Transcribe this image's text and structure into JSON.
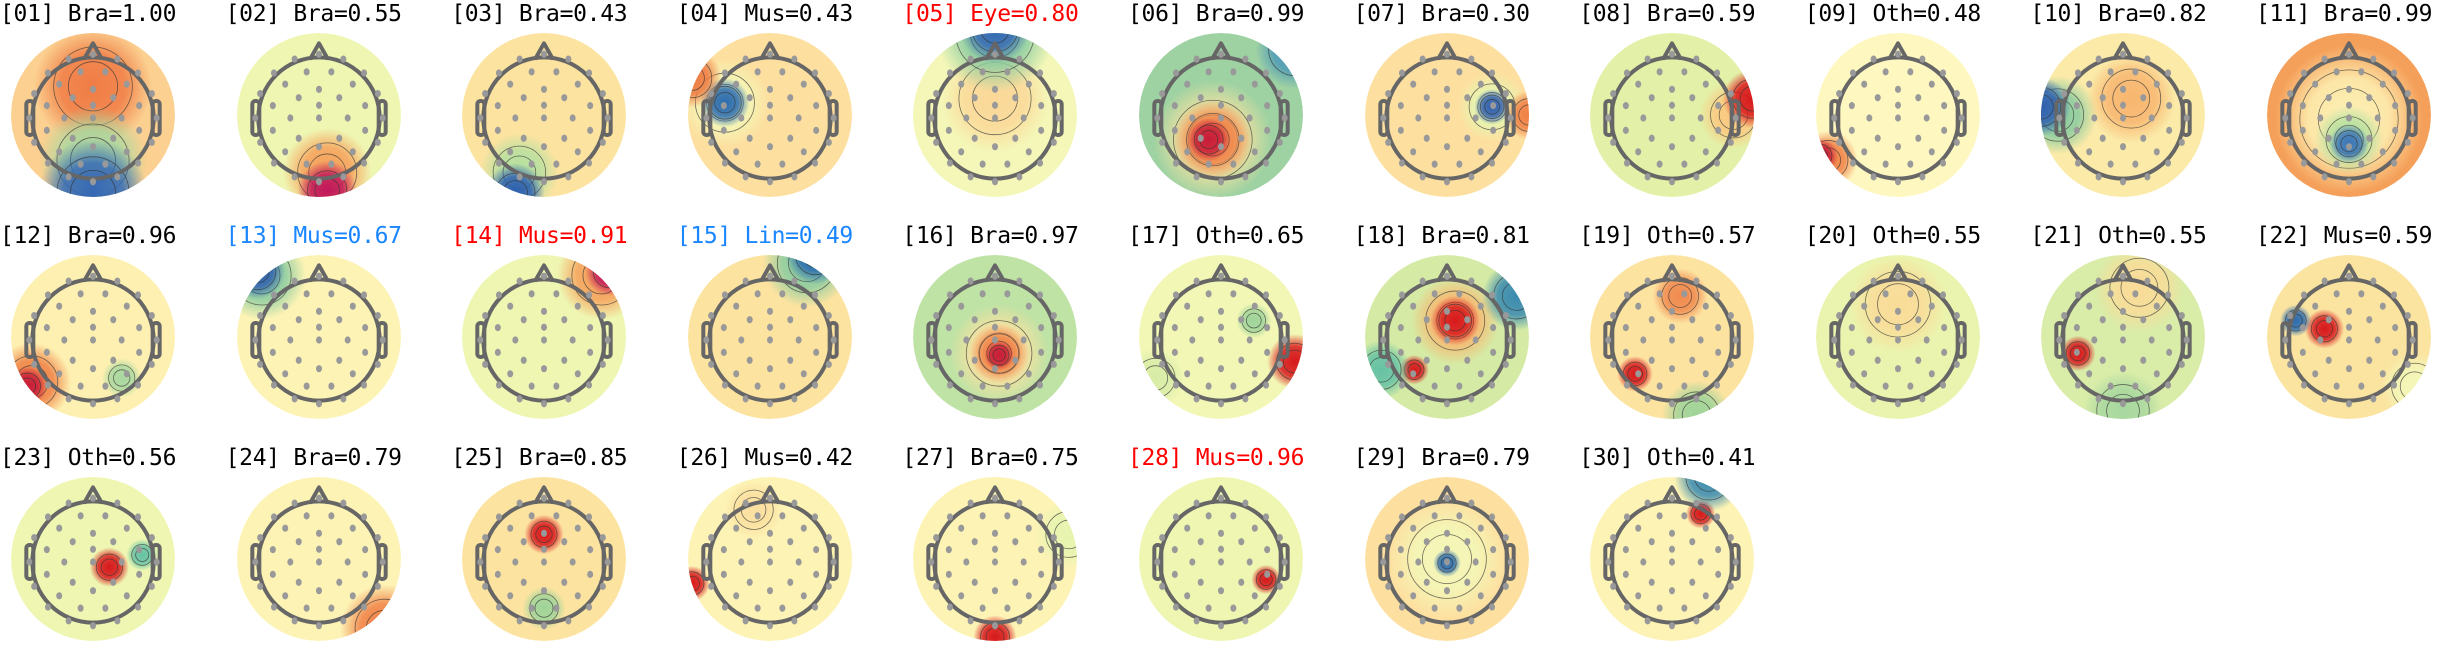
{
  "chart_data": {
    "type": "heatmap",
    "subtype": "scalp-topomap-grid",
    "colormap": "spectral (blue = negative, yellow = neutral, red = positive)",
    "colors": {
      "default_label": "#000000",
      "flagged_label": "#ff0000",
      "warning_label": "#1a86ff"
    },
    "panels": [
      {
        "title": "[01] Bra=1.00",
        "label_color": "#000000",
        "base": "#fbd090",
        "blobs": [
          [
            0,
            -0.35,
            0.6,
            "#f07c45"
          ],
          [
            0,
            0.55,
            0.55,
            "#a8d8a0"
          ],
          [
            0,
            0.95,
            0.55,
            "#3568b5"
          ]
        ]
      },
      {
        "title": "[02] Bra=0.55",
        "label_color": "#000000",
        "base": "#eef6b2",
        "blobs": [
          [
            0.1,
            0.7,
            0.45,
            "#f6a05a"
          ],
          [
            0.1,
            0.92,
            0.3,
            "#c2185b"
          ]
        ]
      },
      {
        "title": "[03] Bra=0.43",
        "label_color": "#000000",
        "base": "#fde3a0",
        "blobs": [
          [
            -0.3,
            0.7,
            0.4,
            "#b5e0a0"
          ],
          [
            -0.35,
            0.95,
            0.3,
            "#2c5fb0"
          ]
        ]
      },
      {
        "title": "[04] Mus=0.43",
        "label_color": "#000000",
        "base": "#fde0a0",
        "blobs": [
          [
            -0.55,
            -0.15,
            0.45,
            "#f3f7b8"
          ],
          [
            -0.55,
            -0.15,
            0.25,
            "#2b6cb0"
          ],
          [
            -0.95,
            -0.45,
            0.3,
            "#ee7b42"
          ]
        ]
      },
      {
        "title": "[05] Eye=0.80",
        "label_color": "#ff0000",
        "base": "#f4f7b8",
        "blobs": [
          [
            0,
            -0.2,
            0.55,
            "#fbd898"
          ],
          [
            0,
            -1,
            0.6,
            "#8acca0"
          ],
          [
            0,
            -1.05,
            0.35,
            "#3568b5"
          ]
        ]
      },
      {
        "title": "[06] Bra=0.99",
        "label_color": "#000000",
        "base": "#9fd2a2",
        "blobs": [
          [
            -0.1,
            0.3,
            0.6,
            "#f7e2a0"
          ],
          [
            -0.1,
            0.3,
            0.4,
            "#f08045"
          ],
          [
            -0.15,
            0.3,
            0.22,
            "#c81d3a"
          ],
          [
            0.9,
            -0.8,
            0.4,
            "#4f9ab8"
          ]
        ]
      },
      {
        "title": "[07] Bra=0.30",
        "label_color": "#000000",
        "base": "#fde0a0",
        "blobs": [
          [
            0.55,
            -0.1,
            0.35,
            "#e6f4b0"
          ],
          [
            0.55,
            -0.1,
            0.18,
            "#3060b0"
          ],
          [
            1,
            0,
            0.25,
            "#f08045"
          ]
        ]
      },
      {
        "title": "[08] Bra=0.59",
        "label_color": "#000000",
        "base": "#e3f1a8",
        "blobs": [
          [
            0.75,
            0,
            0.35,
            "#fbc880"
          ],
          [
            0.98,
            -0.2,
            0.3,
            "#d7191c"
          ]
        ]
      },
      {
        "title": "[09] Oth=0.48",
        "label_color": "#000000",
        "base": "#fef8c0",
        "blobs": [
          [
            -0.85,
            0.55,
            0.3,
            "#f08045"
          ],
          [
            -0.95,
            0.5,
            0.18,
            "#c81d3a"
          ]
        ]
      },
      {
        "title": "[10] Bra=0.82",
        "label_color": "#000000",
        "base": "#fbeaa8",
        "blobs": [
          [
            0.1,
            -0.2,
            0.45,
            "#f8b670"
          ],
          [
            -0.8,
            0,
            0.4,
            "#8acca0"
          ],
          [
            -1,
            -0.1,
            0.3,
            "#3060b0"
          ]
        ]
      },
      {
        "title": "[11] Bra=0.99",
        "label_color": "#000000",
        "base": "#f5a05a",
        "blobs": [
          [
            0,
            0.05,
            0.75,
            "#fdf2b5"
          ],
          [
            0,
            0.3,
            0.35,
            "#b5e0a0"
          ],
          [
            0,
            0.35,
            0.2,
            "#3b75b8"
          ]
        ]
      },
      {
        "title": "[12] Bra=0.96",
        "label_color": "#000000",
        "base": "#fdf0b0",
        "blobs": [
          [
            -0.75,
            0.55,
            0.4,
            "#f08045"
          ],
          [
            -0.8,
            0.6,
            0.2,
            "#c81d3a"
          ],
          [
            0.35,
            0.5,
            0.2,
            "#a8d8a0"
          ]
        ]
      },
      {
        "title": "[13] Mus=0.67",
        "label_color": "#1a86ff",
        "base": "#fdf3b5",
        "blobs": [
          [
            -0.7,
            -0.75,
            0.45,
            "#8acca0"
          ],
          [
            -0.75,
            -0.8,
            0.28,
            "#3060b0"
          ]
        ]
      },
      {
        "title": "[14] Mus=0.91",
        "label_color": "#ff0000",
        "base": "#eef6b2",
        "blobs": [
          [
            0.7,
            -0.75,
            0.45,
            "#f6a05a"
          ],
          [
            0.8,
            -0.8,
            0.25,
            "#c2185b"
          ]
        ]
      },
      {
        "title": "[15] Lin=0.49",
        "label_color": "#1a86ff",
        "base": "#fde3a0",
        "blobs": [
          [
            0.45,
            -0.9,
            0.45,
            "#8acca0"
          ],
          [
            0.55,
            -1,
            0.3,
            "#2b6cb0"
          ]
        ]
      },
      {
        "title": "[16] Bra=0.97",
        "label_color": "#000000",
        "base": "#bfe3a5",
        "blobs": [
          [
            0.05,
            0.2,
            0.5,
            "#fbe0a0"
          ],
          [
            0.05,
            0.2,
            0.3,
            "#f08045"
          ],
          [
            0.05,
            0.22,
            0.15,
            "#c81d3a"
          ]
        ]
      },
      {
        "title": "[17] Oth=0.65",
        "label_color": "#000000",
        "base": "#f3f7b5",
        "blobs": [
          [
            0.9,
            0.3,
            0.28,
            "#d7191c"
          ],
          [
            0.4,
            -0.2,
            0.18,
            "#9fd49a"
          ],
          [
            -0.8,
            0.5,
            0.3,
            "#d8eca8"
          ]
        ]
      },
      {
        "title": "[18] Bra=0.81",
        "label_color": "#000000",
        "base": "#d5eba5",
        "blobs": [
          [
            0.1,
            -0.2,
            0.45,
            "#f8b670"
          ],
          [
            0.1,
            -0.2,
            0.25,
            "#d7191c"
          ],
          [
            -0.4,
            0.4,
            0.15,
            "#d7191c"
          ],
          [
            0.85,
            -0.5,
            0.35,
            "#3a8ab0"
          ],
          [
            -0.8,
            0.4,
            0.3,
            "#66c2a5"
          ]
        ]
      },
      {
        "title": "[19] Oth=0.57",
        "label_color": "#000000",
        "base": "#fde3a0",
        "blobs": [
          [
            -0.45,
            0.45,
            0.18,
            "#d7191c"
          ],
          [
            0.1,
            -0.5,
            0.28,
            "#f08a50"
          ],
          [
            0.3,
            0.95,
            0.35,
            "#9fd49a"
          ]
        ]
      },
      {
        "title": "[20] Oth=0.55",
        "label_color": "#000000",
        "base": "#eaf4ae",
        "blobs": [
          [
            0,
            -0.4,
            0.5,
            "#f9dc98"
          ]
        ]
      },
      {
        "title": "[21] Oth=0.55",
        "label_color": "#000000",
        "base": "#d9eca8",
        "blobs": [
          [
            0.2,
            -0.6,
            0.45,
            "#f9dc98"
          ],
          [
            -0.55,
            0.2,
            0.18,
            "#d7191c"
          ],
          [
            0,
            0.9,
            0.4,
            "#a8d8a0"
          ]
        ]
      },
      {
        "title": "[22] Mus=0.59",
        "label_color": "#000000",
        "base": "#fbe3a0",
        "blobs": [
          [
            -0.3,
            -0.1,
            0.2,
            "#d7191c"
          ],
          [
            -0.65,
            -0.2,
            0.16,
            "#2b6cb0"
          ],
          [
            0.8,
            0.6,
            0.35,
            "#f3f7b8"
          ]
        ]
      },
      {
        "title": "[23] Oth=0.56",
        "label_color": "#000000",
        "base": "#eef6b2",
        "blobs": [
          [
            0.2,
            0.1,
            0.2,
            "#d7191c"
          ],
          [
            0.6,
            -0.05,
            0.16,
            "#66c2a5"
          ]
        ]
      },
      {
        "title": "[24] Bra=0.79",
        "label_color": "#000000",
        "base": "#fdf3b5",
        "blobs": [
          [
            0.8,
            0.85,
            0.45,
            "#f08045"
          ],
          [
            0.85,
            0.95,
            0.25,
            "#d7191c"
          ]
        ]
      },
      {
        "title": "[25] Bra=0.85",
        "label_color": "#000000",
        "base": "#fde3a0",
        "blobs": [
          [
            0,
            -0.3,
            0.2,
            "#d7191c"
          ],
          [
            0,
            0.6,
            0.22,
            "#9fd49a"
          ]
        ]
      },
      {
        "title": "[26] Mus=0.42",
        "label_color": "#000000",
        "base": "#fdf3b5",
        "blobs": [
          [
            -0.95,
            0.3,
            0.18,
            "#d7191c"
          ],
          [
            -0.2,
            -0.6,
            0.3,
            "#fbe0a0"
          ]
        ]
      },
      {
        "title": "[27] Bra=0.75",
        "label_color": "#000000",
        "base": "#fdf3b5",
        "blobs": [
          [
            0,
            0.95,
            0.22,
            "#d7191c"
          ],
          [
            0.9,
            -0.3,
            0.35,
            "#e6f4b0"
          ]
        ]
      },
      {
        "title": "[28] Mus=0.96",
        "label_color": "#ff0000",
        "base": "#eef6b2",
        "blobs": [
          [
            0.55,
            0.25,
            0.15,
            "#d7191c"
          ]
        ]
      },
      {
        "title": "[29] Bra=0.79",
        "label_color": "#000000",
        "base": "#fde0a0",
        "blobs": [
          [
            0,
            0,
            0.6,
            "#f3f7b8"
          ],
          [
            0,
            0.05,
            0.14,
            "#2b6cb0"
          ]
        ]
      },
      {
        "title": "[30] Oth=0.41",
        "label_color": "#000000",
        "base": "#fdf3b5",
        "blobs": [
          [
            0.35,
            -0.55,
            0.15,
            "#d7191c"
          ],
          [
            0.45,
            -1,
            0.35,
            "#3a8ab0"
          ]
        ]
      }
    ]
  }
}
